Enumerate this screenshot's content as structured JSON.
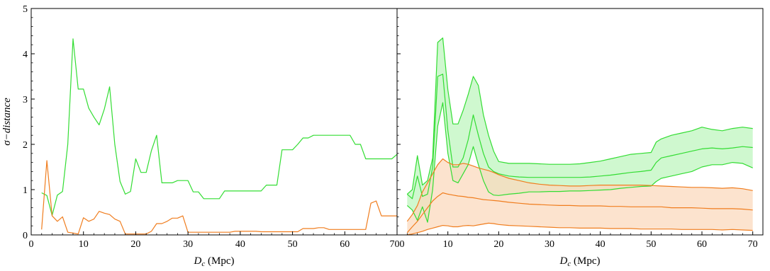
{
  "chart_data": [
    {
      "type": "line",
      "panel": "left",
      "xlabel_main": "D",
      "xlabel_sub": "c",
      "xlabel_unit": " (Mpc)",
      "ylabel": "σ−distance",
      "xlim": [
        0,
        700
      ],
      "ylim": [
        0,
        5
      ],
      "xticks": [
        "0",
        "10",
        "20",
        "30",
        "40",
        "50",
        "60",
        "700"
      ],
      "yticks": [
        "0",
        "1",
        "2",
        "3",
        "4",
        "5"
      ],
      "grid": false,
      "legend": "none",
      "series": [
        {
          "color": "#33dd33",
          "x": [
            2,
            3,
            4,
            5,
            6,
            7,
            8,
            9,
            10,
            11,
            12,
            13,
            14,
            15,
            16,
            17,
            18,
            19,
            20,
            21,
            22,
            23,
            24,
            25,
            26,
            27,
            28,
            29,
            30,
            31,
            32,
            33,
            34,
            35,
            36,
            37,
            38,
            39,
            40,
            41,
            42,
            43,
            44,
            45,
            46,
            47,
            48,
            49,
            50,
            51,
            52,
            53,
            54,
            55,
            56,
            57,
            58,
            59,
            60,
            61,
            62,
            63,
            64,
            65,
            66,
            67,
            68,
            69,
            70
          ],
          "y": [
            0.93,
            0.87,
            0.43,
            0.88,
            0.96,
            2.0,
            4.33,
            3.22,
            3.22,
            2.8,
            2.6,
            2.43,
            2.78,
            3.27,
            2.0,
            1.18,
            0.9,
            0.96,
            1.68,
            1.38,
            1.38,
            1.86,
            2.2,
            1.15,
            1.15,
            1.15,
            1.2,
            1.2,
            1.2,
            0.95,
            0.95,
            0.8,
            0.8,
            0.8,
            0.8,
            0.97,
            0.97,
            0.97,
            0.97,
            0.97,
            0.97,
            0.97,
            0.97,
            1.1,
            1.1,
            1.1,
            1.88,
            1.88,
            1.88,
            2.0,
            2.14,
            2.14,
            2.2,
            2.2,
            2.2,
            2.2,
            2.2,
            2.2,
            2.2,
            2.2,
            2.0,
            2.0,
            1.68,
            1.68,
            1.68,
            1.68,
            1.68,
            1.68,
            1.78
          ]
        },
        {
          "color": "#f07d1e",
          "x": [
            2,
            3,
            4,
            5,
            6,
            7,
            8,
            9,
            10,
            11,
            12,
            13,
            14,
            15,
            16,
            17,
            18,
            19,
            20,
            21,
            22,
            23,
            24,
            25,
            26,
            27,
            28,
            29,
            30,
            31,
            32,
            33,
            34,
            35,
            36,
            37,
            38,
            39,
            40,
            41,
            42,
            43,
            44,
            45,
            46,
            47,
            48,
            49,
            50,
            51,
            52,
            53,
            54,
            55,
            56,
            57,
            58,
            59,
            60,
            61,
            62,
            63,
            64,
            65,
            66,
            67,
            68,
            69,
            70
          ],
          "y": [
            0.12,
            1.64,
            0.42,
            0.3,
            0.4,
            0.06,
            0.04,
            0.02,
            0.38,
            0.3,
            0.35,
            0.52,
            0.48,
            0.45,
            0.35,
            0.3,
            0.02,
            0.02,
            0.02,
            0.02,
            0.02,
            0.08,
            0.25,
            0.25,
            0.3,
            0.37,
            0.37,
            0.42,
            0.06,
            0.06,
            0.06,
            0.06,
            0.06,
            0.06,
            0.06,
            0.06,
            0.06,
            0.08,
            0.08,
            0.08,
            0.08,
            0.08,
            0.07,
            0.07,
            0.07,
            0.07,
            0.07,
            0.07,
            0.07,
            0.07,
            0.14,
            0.14,
            0.14,
            0.16,
            0.16,
            0.12,
            0.12,
            0.12,
            0.12,
            0.12,
            0.12,
            0.12,
            0.12,
            0.7,
            0.75,
            0.42,
            0.42,
            0.42,
            0.42
          ]
        }
      ]
    },
    {
      "type": "area",
      "panel": "right",
      "xlabel_main": "D",
      "xlabel_sub": "c",
      "xlabel_unit": " (Mpc)",
      "xlim": [
        0,
        72
      ],
      "ylim": [
        0,
        5
      ],
      "xticks": [
        10,
        20,
        30,
        40,
        50,
        60,
        70
      ],
      "grid": false,
      "legend": "none",
      "series": [
        {
          "color": "#33dd33",
          "fill": "#bff5bf",
          "x": [
            2,
            3,
            4,
            5,
            6,
            7,
            8,
            9,
            10,
            11,
            12,
            13,
            14,
            15,
            16,
            17,
            18,
            19,
            20,
            22,
            24,
            26,
            28,
            30,
            32,
            34,
            36,
            38,
            40,
            42,
            44,
            46,
            48,
            50,
            51,
            52,
            54,
            56,
            58,
            60,
            62,
            64,
            66,
            68,
            70
          ],
          "mid": [
            0.9,
            0.8,
            1.3,
            0.85,
            0.9,
            1.5,
            3.5,
            3.55,
            2.3,
            1.5,
            1.5,
            1.7,
            2.1,
            2.65,
            2.2,
            1.8,
            1.5,
            1.4,
            1.35,
            1.3,
            1.28,
            1.27,
            1.27,
            1.27,
            1.27,
            1.27,
            1.27,
            1.28,
            1.3,
            1.32,
            1.35,
            1.38,
            1.4,
            1.43,
            1.6,
            1.7,
            1.75,
            1.8,
            1.85,
            1.9,
            1.92,
            1.9,
            1.92,
            1.95,
            1.93
          ],
          "upper": [
            0.9,
            1.0,
            1.75,
            1.1,
            1.2,
            1.7,
            4.25,
            4.35,
            3.2,
            2.45,
            2.45,
            2.75,
            3.1,
            3.5,
            3.3,
            2.65,
            2.2,
            1.85,
            1.62,
            1.58,
            1.58,
            1.58,
            1.57,
            1.56,
            1.56,
            1.56,
            1.57,
            1.6,
            1.63,
            1.68,
            1.73,
            1.78,
            1.8,
            1.82,
            2.05,
            2.12,
            2.2,
            2.25,
            2.3,
            2.38,
            2.33,
            2.3,
            2.35,
            2.38,
            2.35
          ],
          "lower": [
            0.65,
            0.55,
            0.32,
            0.62,
            0.28,
            1.0,
            2.4,
            2.92,
            1.8,
            1.2,
            1.15,
            1.35,
            1.55,
            1.95,
            1.55,
            1.2,
            0.95,
            0.88,
            0.87,
            0.9,
            0.92,
            0.95,
            0.95,
            0.96,
            0.96,
            0.97,
            0.97,
            0.98,
            0.99,
            1.0,
            1.03,
            1.05,
            1.07,
            1.08,
            1.18,
            1.25,
            1.3,
            1.35,
            1.4,
            1.5,
            1.55,
            1.55,
            1.6,
            1.58,
            1.48
          ]
        },
        {
          "color": "#f07d1e",
          "fill": "#fbd9bd",
          "x": [
            2,
            3,
            4,
            5,
            6,
            7,
            8,
            9,
            10,
            11,
            12,
            13,
            14,
            15,
            16,
            17,
            18,
            19,
            20,
            22,
            24,
            26,
            28,
            30,
            32,
            34,
            36,
            38,
            40,
            42,
            44,
            46,
            48,
            50,
            52,
            54,
            56,
            58,
            60,
            62,
            64,
            66,
            68,
            70
          ],
          "mid": [
            0.05,
            0.18,
            0.3,
            0.45,
            0.6,
            0.75,
            0.85,
            0.93,
            0.9,
            0.88,
            0.86,
            0.85,
            0.83,
            0.82,
            0.8,
            0.78,
            0.77,
            0.76,
            0.75,
            0.72,
            0.7,
            0.68,
            0.67,
            0.66,
            0.65,
            0.65,
            0.64,
            0.64,
            0.64,
            0.63,
            0.63,
            0.62,
            0.62,
            0.62,
            0.62,
            0.6,
            0.6,
            0.6,
            0.59,
            0.58,
            0.58,
            0.58,
            0.57,
            0.55
          ],
          "upper": [
            0.3,
            0.45,
            0.65,
            0.95,
            1.15,
            1.35,
            1.55,
            1.68,
            1.6,
            1.55,
            1.55,
            1.58,
            1.56,
            1.52,
            1.48,
            1.45,
            1.42,
            1.38,
            1.33,
            1.25,
            1.2,
            1.15,
            1.12,
            1.1,
            1.09,
            1.08,
            1.08,
            1.09,
            1.1,
            1.1,
            1.1,
            1.1,
            1.1,
            1.09,
            1.08,
            1.07,
            1.06,
            1.05,
            1.05,
            1.04,
            1.03,
            1.04,
            1.02,
            0.98
          ],
          "lower": [
            0.0,
            0.02,
            0.05,
            0.08,
            0.12,
            0.15,
            0.18,
            0.21,
            0.2,
            0.18,
            0.18,
            0.2,
            0.21,
            0.2,
            0.22,
            0.24,
            0.26,
            0.25,
            0.23,
            0.21,
            0.2,
            0.19,
            0.18,
            0.17,
            0.16,
            0.16,
            0.15,
            0.15,
            0.15,
            0.14,
            0.14,
            0.14,
            0.13,
            0.13,
            0.13,
            0.13,
            0.12,
            0.12,
            0.12,
            0.12,
            0.11,
            0.12,
            0.11,
            0.1
          ]
        }
      ]
    }
  ]
}
